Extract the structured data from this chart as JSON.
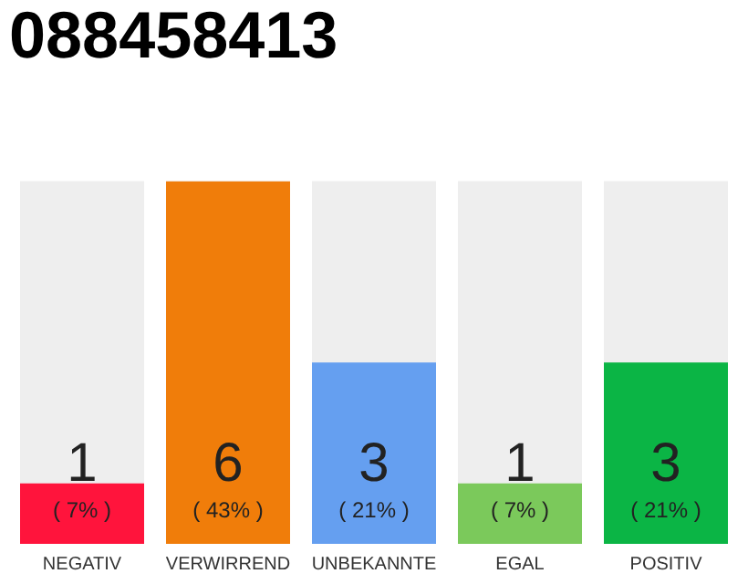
{
  "chart_data": {
    "type": "bar",
    "title": "088458413",
    "categories": [
      "NEGATIV",
      "VERWIRREND",
      "UNBEKANNTE",
      "EGAL",
      "POSITIV"
    ],
    "values": [
      1,
      6,
      3,
      1,
      3
    ],
    "colors": [
      "#ff143c",
      "#f07d0a",
      "#659ff0",
      "#7bc95b",
      "#0bb545"
    ],
    "annotations": [
      {
        "text": "( 7% )",
        "x": "NEGATIV",
        "y": 0
      },
      {
        "text": "( 43% )",
        "x": "VERWIRREND",
        "y": 0
      },
      {
        "text": "( 21% )",
        "x": "UNBEKANNTE",
        "y": 0
      },
      {
        "text": "( 7% )",
        "x": "EGAL",
        "y": 0
      },
      {
        "text": "( 21% )",
        "x": "POSITIV",
        "y": 0
      }
    ],
    "data_labels": true,
    "tick_labels": "x",
    "grid": false,
    "legend": false
  }
}
